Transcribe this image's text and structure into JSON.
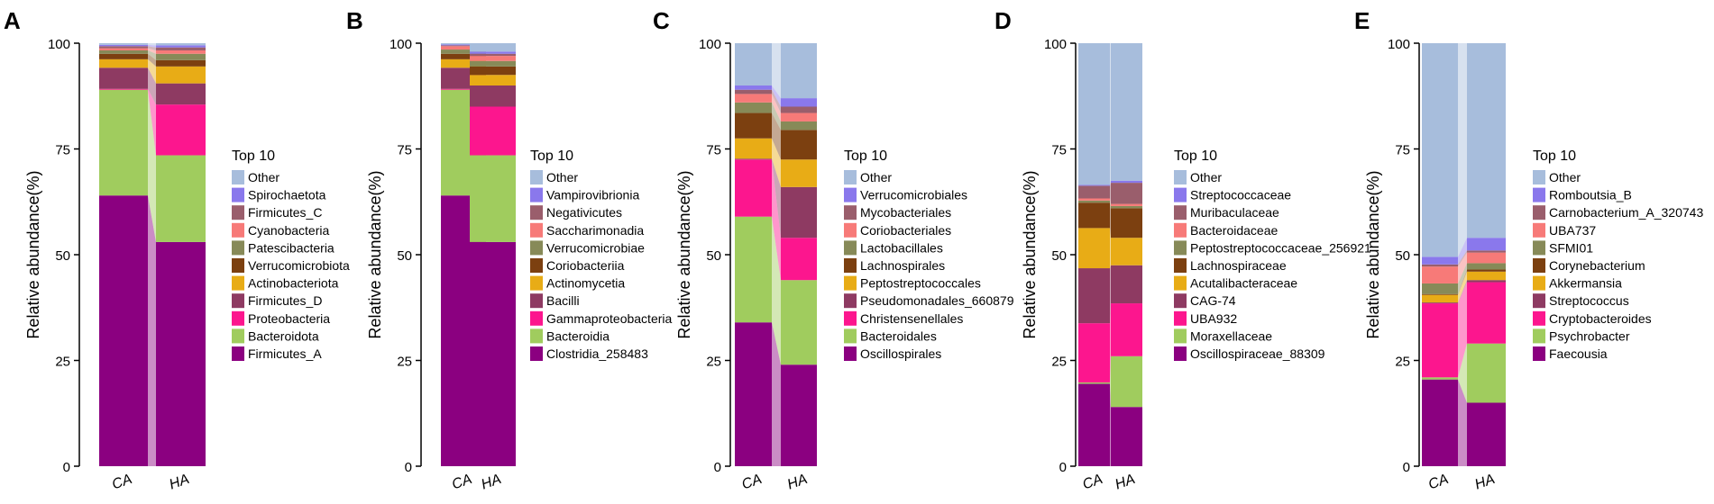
{
  "figure": {
    "y_axis_label": "Relative abundance(%)",
    "legend_title": "Top 10"
  },
  "colors": {
    "palette": [
      "#a7bddc",
      "#8a78ec",
      "#9a5e6c",
      "#f77a78",
      "#878a58",
      "#7c4010",
      "#e8ac16",
      "#8e3a62",
      "#fc168e",
      "#a0cc5e",
      "#8b0080"
    ]
  },
  "chart_data": [
    {
      "panel": "A",
      "type": "bar",
      "stacked": true,
      "categories": [
        "CA",
        "HA"
      ],
      "ylabel": "Relative abundance(%)",
      "ylim": [
        0,
        100
      ],
      "yticks": [
        0,
        25,
        50,
        75,
        100
      ],
      "legend_title": "Top 10",
      "series": [
        {
          "name": "Firmicutes_A",
          "values": [
            64,
            53
          ]
        },
        {
          "name": "Bacteroidota",
          "values": [
            25,
            20.5
          ]
        },
        {
          "name": "Proteobacteria",
          "values": [
            0.2,
            12
          ]
        },
        {
          "name": "Firmicutes_D",
          "values": [
            5,
            5
          ]
        },
        {
          "name": "Actinobacteriota",
          "values": [
            2,
            4
          ]
        },
        {
          "name": "Verrucomicrobiota",
          "values": [
            1.3,
            1.5
          ]
        },
        {
          "name": "Patescibacteria",
          "values": [
            0.8,
            1.5
          ]
        },
        {
          "name": "Cyanobacteria",
          "values": [
            0.5,
            0.8
          ]
        },
        {
          "name": "Firmicutes_C",
          "values": [
            0.5,
            0.7
          ]
        },
        {
          "name": "Spirochaetota",
          "values": [
            0.3,
            0.5
          ]
        },
        {
          "name": "Other",
          "values": [
            0.4,
            0.5
          ]
        }
      ]
    },
    {
      "panel": "B",
      "type": "bar",
      "stacked": true,
      "categories": [
        "CA",
        "HA"
      ],
      "ylabel": "Relative abundance(%)",
      "ylim": [
        0,
        100
      ],
      "yticks": [
        0,
        25,
        50,
        75,
        100
      ],
      "legend_title": "Top 10",
      "series": [
        {
          "name": "Clostridia_258483",
          "values": [
            64,
            53
          ]
        },
        {
          "name": "Bacteroidia",
          "values": [
            25,
            20.5
          ]
        },
        {
          "name": "Gammaproteobacteria",
          "values": [
            0.2,
            11.5
          ]
        },
        {
          "name": "Bacilli",
          "values": [
            5,
            5
          ]
        },
        {
          "name": "Actinomycetia",
          "values": [
            2,
            2.5
          ]
        },
        {
          "name": "Coriobacteriia",
          "values": [
            1.3,
            2
          ]
        },
        {
          "name": "Verrucomicrobiae",
          "values": [
            1,
            1.3
          ]
        },
        {
          "name": "Saccharimonadia",
          "values": [
            0.8,
            1.2
          ]
        },
        {
          "name": "Negativicutes",
          "values": [
            0.2,
            0.5
          ]
        },
        {
          "name": "Vampirovibrionia",
          "values": [
            0.2,
            0.5
          ]
        },
        {
          "name": "Other",
          "values": [
            0.3,
            2
          ]
        }
      ]
    },
    {
      "panel": "C",
      "type": "bar",
      "stacked": true,
      "categories": [
        "CA",
        "HA"
      ],
      "ylabel": "Relative abundance(%)",
      "ylim": [
        0,
        100
      ],
      "yticks": [
        0,
        25,
        50,
        75,
        100
      ],
      "legend_title": "Top 10",
      "series": [
        {
          "name": "Oscillospirales",
          "values": [
            34,
            24
          ]
        },
        {
          "name": "Bacteroidales",
          "values": [
            25,
            20
          ]
        },
        {
          "name": "Christensenellales",
          "values": [
            13.5,
            10
          ]
        },
        {
          "name": "Pseudomonadales_660879",
          "values": [
            0.2,
            12
          ]
        },
        {
          "name": "Peptostreptococcales",
          "values": [
            4.8,
            6.5
          ]
        },
        {
          "name": "Lachnospirales",
          "values": [
            6,
            7
          ]
        },
        {
          "name": "Lactobacillales",
          "values": [
            2.5,
            2
          ]
        },
        {
          "name": "Coriobacteriales",
          "values": [
            2,
            2
          ]
        },
        {
          "name": "Mycobacteriales",
          "values": [
            1,
            1.5
          ]
        },
        {
          "name": "Verrucomicrobiales",
          "values": [
            1,
            2
          ]
        },
        {
          "name": "Other",
          "values": [
            10,
            13
          ]
        }
      ]
    },
    {
      "panel": "D",
      "type": "bar",
      "stacked": true,
      "categories": [
        "CA",
        "HA"
      ],
      "ylabel": "Relative abundance(%)",
      "ylim": [
        0,
        100
      ],
      "yticks": [
        0,
        25,
        50,
        75,
        100
      ],
      "legend_title": "Top 10",
      "series": [
        {
          "name": "Oscillospiraceae_88309",
          "values": [
            19.5,
            14
          ]
        },
        {
          "name": "Moraxellaceae",
          "values": [
            0.3,
            12
          ]
        },
        {
          "name": "UBA932",
          "values": [
            14,
            12.5
          ]
        },
        {
          "name": "CAG-74",
          "values": [
            13,
            9
          ]
        },
        {
          "name": "Acutalibacteraceae",
          "values": [
            9.5,
            6.5
          ]
        },
        {
          "name": "Lachnospiraceae",
          "values": [
            6,
            7
          ]
        },
        {
          "name": "Peptostreptococcaceae_256921",
          "values": [
            0.5,
            0.5
          ]
        },
        {
          "name": "Bacteroidaceae",
          "values": [
            0.5,
            0.5
          ]
        },
        {
          "name": "Muribaculaceae",
          "values": [
            3,
            5
          ]
        },
        {
          "name": "Streptococcaceae",
          "values": [
            0.2,
            0.5
          ]
        },
        {
          "name": "Other",
          "values": [
            33.5,
            32.5
          ]
        }
      ]
    },
    {
      "panel": "E",
      "type": "bar",
      "stacked": true,
      "categories": [
        "CA",
        "HA"
      ],
      "ylabel": "Relative abundance(%)",
      "ylim": [
        0,
        100
      ],
      "yticks": [
        0,
        25,
        50,
        75,
        100
      ],
      "legend_title": "Top 10",
      "series": [
        {
          "name": "Faecousia",
          "values": [
            20.5,
            15
          ]
        },
        {
          "name": "Psychrobacter",
          "values": [
            0.5,
            14
          ]
        },
        {
          "name": "Cryptobacteroides",
          "values": [
            17.5,
            14.5
          ]
        },
        {
          "name": "Streptococcus",
          "values": [
            0.2,
            0.5
          ]
        },
        {
          "name": "Akkermansia",
          "values": [
            1.8,
            2
          ]
        },
        {
          "name": "Corynebacterium",
          "values": [
            0.2,
            0.5
          ]
        },
        {
          "name": "SFMI01",
          "values": [
            2.5,
            1.5
          ]
        },
        {
          "name": "UBA737",
          "values": [
            4,
            2.5
          ]
        },
        {
          "name": "Carnobacterium_A_320743",
          "values": [
            0.5,
            0.5
          ]
        },
        {
          "name": "Romboutsia_B",
          "values": [
            1.8,
            3
          ]
        },
        {
          "name": "Other",
          "values": [
            50.5,
            46
          ]
        }
      ]
    }
  ]
}
